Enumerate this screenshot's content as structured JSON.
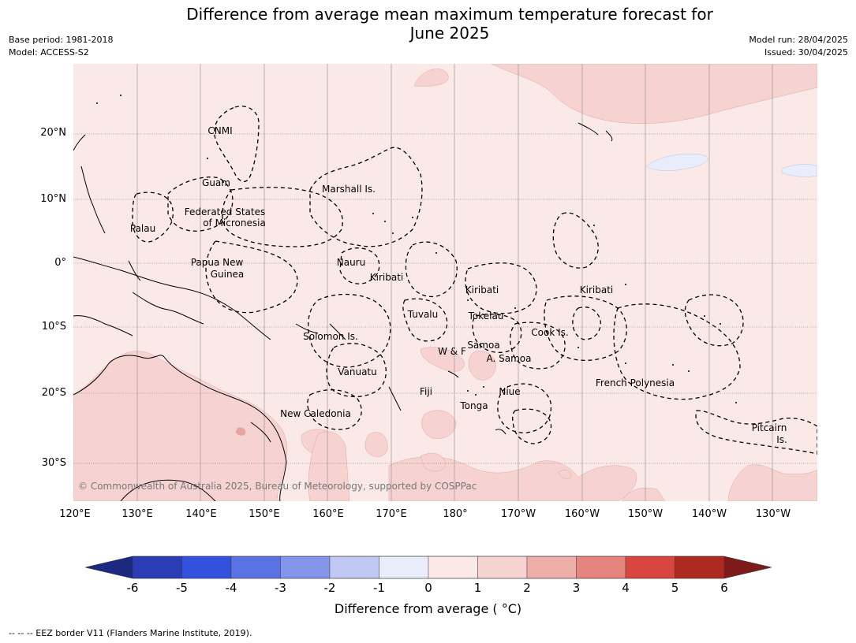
{
  "title_line1": "Difference from average mean maximum temperature forecast for",
  "title_line2": "June 2025",
  "meta_left": [
    "Base period: 1981-2018",
    "Model: ACCESS-S2"
  ],
  "meta_right": [
    "Model run: 28/04/2025",
    "Issued: 30/04/2025"
  ],
  "lat_labels": [
    "20°N",
    "10°N",
    "0°",
    "10°S",
    "20°S",
    "30°S"
  ],
  "lon_labels": [
    "120°E",
    "130°E",
    "140°E",
    "150°E",
    "160°E",
    "170°E",
    "180°",
    "170°W",
    "160°W",
    "150°W",
    "140°W",
    "130°W"
  ],
  "places": [
    {
      "name": "CNMI"
    },
    {
      "name": "Guam"
    },
    {
      "name": "Marshall Is."
    },
    {
      "name": "Federated States"
    },
    {
      "name": "of Micronesia"
    },
    {
      "name": "Palau"
    },
    {
      "name": "Papua New"
    },
    {
      "name": "Guinea"
    },
    {
      "name": "Nauru"
    },
    {
      "name": "Kiribati"
    },
    {
      "name": "Kiribati"
    },
    {
      "name": "Kiribati"
    },
    {
      "name": "Tuvalu"
    },
    {
      "name": "Tokelau"
    },
    {
      "name": "Cook Is."
    },
    {
      "name": "Solomon Is."
    },
    {
      "name": "W & F"
    },
    {
      "name": "Samoa"
    },
    {
      "name": "A. Samoa"
    },
    {
      "name": "Vanuatu"
    },
    {
      "name": "Fiji"
    },
    {
      "name": "Niue"
    },
    {
      "name": "French Polynesia"
    },
    {
      "name": "Tonga"
    },
    {
      "name": "New Caledonia"
    },
    {
      "name": "Pitcairn"
    },
    {
      "name": "Is."
    }
  ],
  "copyright": "© Commonwealth of Australia 2025, Bureau of Meteorology, supported by COSPPac",
  "colorbar": {
    "ticks": [
      "-6",
      "-5",
      "-4",
      "-3",
      "-2",
      "-1",
      "0",
      "1",
      "2",
      "3",
      "4",
      "5",
      "6"
    ],
    "colors": [
      "#1b2a80",
      "#2a3db5",
      "#3150e0",
      "#5a72e3",
      "#8396ea",
      "#c0c8f3",
      "#e9edfb",
      "#fbe9e7",
      "#f6d3d1",
      "#edaeaa",
      "#e6857f",
      "#d9453f",
      "#ad2922",
      "#7c1b19"
    ],
    "label": "Difference from average ( °C)"
  },
  "footnote": "--  --  -- EEZ border V11 (Flanders Marine Institute, 2019).",
  "colors": {
    "ocean_base": "#fbe9e7",
    "warm_patch": "#f6d3d1",
    "cool_patch": "#e9edfb",
    "land": "#f6d3d1"
  }
}
